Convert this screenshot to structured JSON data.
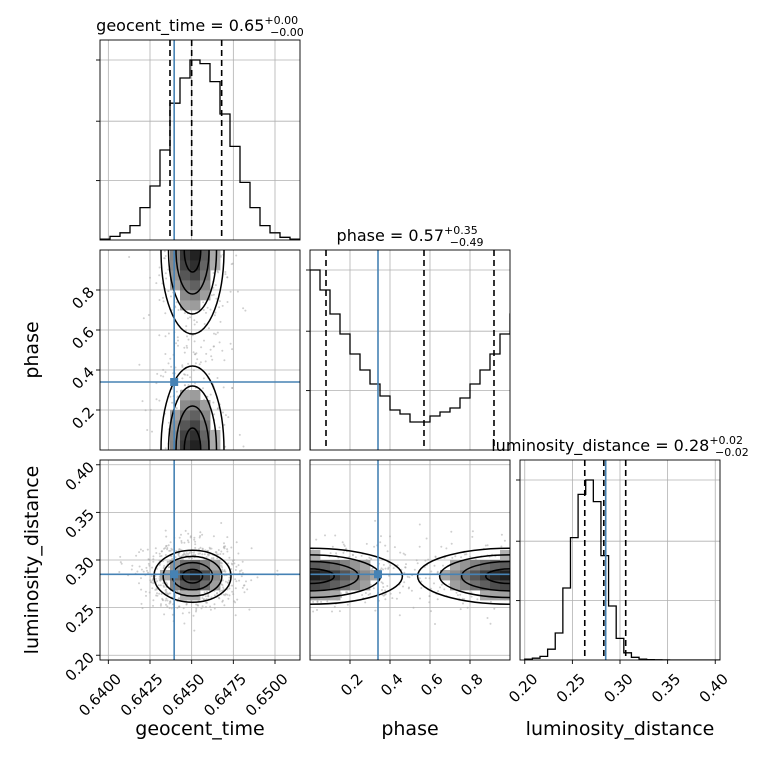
{
  "chart_data": {
    "type": "corner",
    "parameters": [
      "geocent_time",
      "phase",
      "luminosity_distance"
    ],
    "truths": {
      "geocent_time": 0.64395,
      "phase": 0.34,
      "luminosity_distance": 0.285
    },
    "truth_color": "#4682b4",
    "hist_color": "#000000",
    "grid": true,
    "axes": {
      "geocent_time": {
        "lim": [
          0.6395,
          0.6515
        ],
        "ticks": [
          0.64,
          0.6425,
          0.645,
          0.6475,
          0.65
        ],
        "ticklabels": [
          "0.6400",
          "0.6425",
          "0.6450",
          "0.6475",
          "0.6500"
        ],
        "xlabel": "geocent_time"
      },
      "phase": {
        "lim": [
          0.0,
          1.0
        ],
        "ticks": [
          0.2,
          0.4,
          0.6,
          0.8
        ],
        "ticklabels": [
          "0.2",
          "0.4",
          "0.6",
          "0.8"
        ],
        "xlabel": "phase",
        "ylabel": "phase"
      },
      "luminosity_distance": {
        "lim": [
          0.195,
          0.405
        ],
        "ticks": [
          0.2,
          0.25,
          0.3,
          0.35,
          0.4
        ],
        "ticklabels": [
          "0.20",
          "0.25",
          "0.30",
          "0.35",
          "0.40"
        ],
        "xlabel": "luminosity_distance",
        "ylabel": "luminosity_distance"
      }
    },
    "titles": [
      {
        "param": "geocent_time",
        "main": "geocent_time = 0.65",
        "sup": "+0.00",
        "sub": "−0.00",
        "quantiles": [
          0.6437,
          0.645,
          0.6468
        ]
      },
      {
        "param": "phase",
        "main": "phase = 0.57",
        "sup": "+0.35",
        "sub": "−0.49",
        "quantiles": [
          0.08,
          0.57,
          0.92
        ]
      },
      {
        "param": "luminosity_distance",
        "main": "luminosity_distance = 0.28",
        "sup": "+0.02",
        "sub": "−0.02",
        "quantiles": [
          0.263,
          0.283,
          0.306
        ]
      }
    ],
    "histograms": {
      "geocent_time": {
        "bin_start": 0.6395,
        "bin_width": 0.0006,
        "counts": [
          0.5,
          2,
          4,
          8,
          18,
          30,
          50,
          76,
          90,
          100,
          98,
          88,
          70,
          52,
          32,
          18,
          8,
          4,
          1.5,
          0.5
        ]
      },
      "phase": {
        "bin_start": 0.0,
        "bin_width": 0.05,
        "counts": [
          90,
          80,
          68,
          58,
          48,
          40,
          33,
          27,
          20,
          18,
          14,
          14,
          17,
          19,
          21,
          26,
          33,
          40,
          48,
          58,
          68,
          78,
          84,
          90
        ]
      },
      "luminosity_distance": {
        "bin_start": 0.2,
        "bin_width": 0.008,
        "counts": [
          0.5,
          1,
          2,
          6,
          15,
          40,
          68,
          92,
          100,
          88,
          58,
          30,
          12,
          4,
          1.5,
          0.5,
          0.2,
          0.1,
          0.05,
          0.02,
          0.01,
          0.01,
          0.01,
          0.01,
          0.01,
          0.01
        ]
      }
    },
    "joint": [
      {
        "x": "geocent_time",
        "y": "phase",
        "modes": [
          {
            "x": 0.64505,
            "y": 0.0,
            "sx": 0.0009,
            "sy": 0.2
          },
          {
            "x": 0.64505,
            "y": 1.0,
            "sx": 0.0009,
            "sy": 0.2
          }
        ]
      },
      {
        "x": "geocent_time",
        "y": "luminosity_distance",
        "modes": [
          {
            "x": 0.64505,
            "y": 0.283,
            "sx": 0.0011,
            "sy": 0.013
          }
        ]
      },
      {
        "x": "phase",
        "y": "luminosity_distance",
        "modes": [
          {
            "x": 0.0,
            "y": 0.283,
            "sx": 0.22,
            "sy": 0.014
          },
          {
            "x": 1.0,
            "y": 0.283,
            "sx": 0.22,
            "sy": 0.014
          }
        ]
      }
    ]
  }
}
